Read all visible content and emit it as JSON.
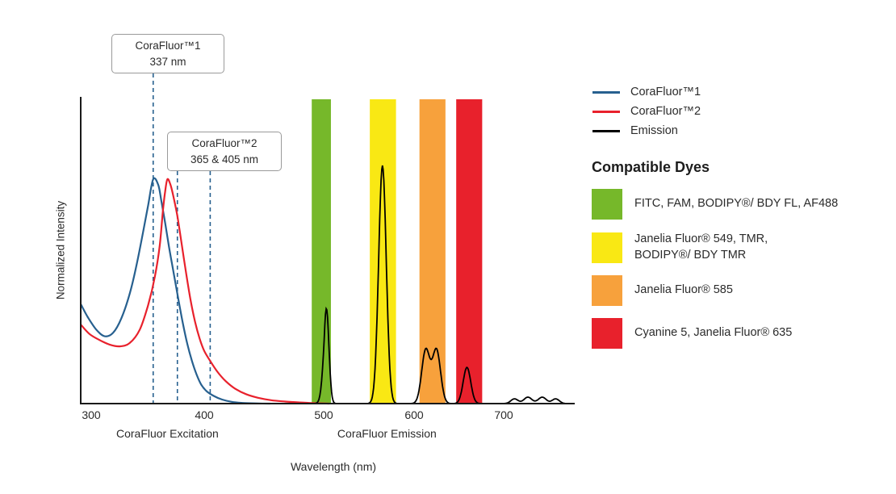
{
  "chart_data": {
    "type": "line",
    "title": "",
    "xlabel": "Wavelength (nm)",
    "ylabel": "Normalized Intensity",
    "x_ticks": [
      300,
      400,
      500,
      600,
      700
    ],
    "x_scale": "piecewise non-linear (excitation region expanded)",
    "ylim": [
      0,
      1.1
    ],
    "grid": false,
    "legend_position": "right",
    "axis_region_labels": [
      {
        "label": "CoraFluor Excitation",
        "center_nm": 352
      },
      {
        "label": "CoraFluor Emission",
        "center_nm": 570
      }
    ],
    "callouts": [
      {
        "line1": "CoraFluor™1",
        "line2": "337 nm",
        "marker_nm": [
          337
        ]
      },
      {
        "line1": "CoraFluor™2",
        "line2": "365 & 405 nm",
        "marker_nm": [
          365,
          405
        ]
      }
    ],
    "series": [
      {
        "name": "CoraFluor™1",
        "kind": "excitation",
        "color": "#27608f",
        "points": [
          [
            294,
            0.44
          ],
          [
            298,
            0.385
          ],
          [
            303,
            0.33
          ],
          [
            308,
            0.3
          ],
          [
            313,
            0.315
          ],
          [
            318,
            0.38
          ],
          [
            323,
            0.49
          ],
          [
            327,
            0.615
          ],
          [
            331,
            0.765
          ],
          [
            334,
            0.885
          ],
          [
            337,
            1.0
          ],
          [
            340,
            0.975
          ],
          [
            344,
            0.905
          ],
          [
            349,
            0.805
          ],
          [
            354,
            0.7
          ],
          [
            360,
            0.585
          ],
          [
            366,
            0.47
          ],
          [
            372,
            0.36
          ],
          [
            378,
            0.265
          ],
          [
            384,
            0.19
          ],
          [
            390,
            0.13
          ],
          [
            396,
            0.085
          ],
          [
            402,
            0.055
          ],
          [
            408,
            0.034
          ],
          [
            415,
            0.018
          ],
          [
            423,
            0.008
          ],
          [
            432,
            0.003
          ],
          [
            443,
            0.001
          ],
          [
            455,
            0
          ]
        ]
      },
      {
        "name": "CoraFluor™2",
        "kind": "excitation",
        "color": "#e8212c",
        "points": [
          [
            294,
            0.35
          ],
          [
            299,
            0.31
          ],
          [
            305,
            0.283
          ],
          [
            311,
            0.263
          ],
          [
            317,
            0.255
          ],
          [
            323,
            0.27
          ],
          [
            329,
            0.33
          ],
          [
            334,
            0.44
          ],
          [
            338,
            0.565
          ],
          [
            342,
            0.705
          ],
          [
            346,
            0.855
          ],
          [
            349,
            0.945
          ],
          [
            352,
            1.0
          ],
          [
            356,
            0.975
          ],
          [
            360,
            0.92
          ],
          [
            365,
            0.835
          ],
          [
            370,
            0.725
          ],
          [
            376,
            0.59
          ],
          [
            382,
            0.465
          ],
          [
            388,
            0.365
          ],
          [
            394,
            0.29
          ],
          [
            400,
            0.235
          ],
          [
            405,
            0.19
          ],
          [
            411,
            0.142
          ],
          [
            418,
            0.1
          ],
          [
            426,
            0.066
          ],
          [
            435,
            0.042
          ],
          [
            445,
            0.026
          ],
          [
            456,
            0.015
          ],
          [
            468,
            0.009
          ],
          [
            480,
            0.005
          ],
          [
            492,
            0.002
          ],
          [
            506,
            0
          ]
        ]
      },
      {
        "name": "Emission",
        "kind": "emission",
        "color": "#000000",
        "peaks": [
          {
            "center_nm": 503,
            "height": 0.4,
            "sigma_nm": 2.8
          },
          {
            "center_nm": 565,
            "height": 1.0,
            "sigma_nm": 4.2
          },
          {
            "center_nm": 613,
            "height": 0.225,
            "sigma_nm": 4.5
          },
          {
            "center_nm": 625,
            "height": 0.225,
            "sigma_nm": 4.5
          },
          {
            "center_nm": 659,
            "height": 0.152,
            "sigma_nm": 4.2
          },
          {
            "center_nm": 712,
            "height": 0.02,
            "sigma_nm": 4.0
          },
          {
            "center_nm": 727,
            "height": 0.027,
            "sigma_nm": 4.5
          },
          {
            "center_nm": 743,
            "height": 0.027,
            "sigma_nm": 4.5
          },
          {
            "center_nm": 758,
            "height": 0.02,
            "sigma_nm": 4.0
          }
        ]
      }
    ],
    "filter_bands": [
      {
        "from_nm": 490,
        "to_nm": 508,
        "color": "#76b82a"
      },
      {
        "from_nm": 551,
        "to_nm": 580,
        "color": "#f9e814"
      },
      {
        "from_nm": 606,
        "to_nm": 635,
        "color": "#f7a13c"
      },
      {
        "from_nm": 647,
        "to_nm": 676,
        "color": "#e8212c"
      }
    ]
  },
  "legend": {
    "items": [
      {
        "label": "CoraFluor™1",
        "color": "#27608f"
      },
      {
        "label": "CoraFluor™2",
        "color": "#e8212c"
      },
      {
        "label": "Emission",
        "color": "#000000"
      }
    ]
  },
  "compatible_dyes": {
    "heading": "Compatible Dyes",
    "items": [
      {
        "swatch_color": "#76b82a",
        "label": "FITC, FAM, BODIPY®/ BDY FL, AF488"
      },
      {
        "swatch_color": "#f9e814",
        "label": "Janelia Fluor® 549, TMR,\nBODIPY®/ BDY TMR"
      },
      {
        "swatch_color": "#f7a13c",
        "label": "Janelia Fluor® 585"
      },
      {
        "swatch_color": "#e8212c",
        "label": "Cyanine 5, Janelia Fluor® 635"
      }
    ]
  }
}
